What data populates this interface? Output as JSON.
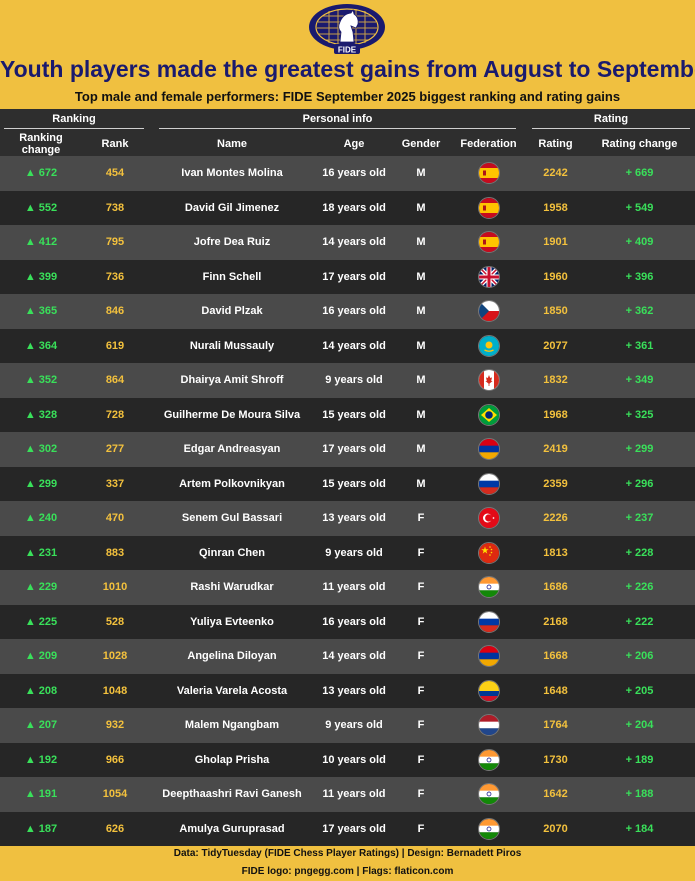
{
  "header": {
    "logo_text": "FIDE",
    "title": "Youth players made the greatest gains from August to September",
    "subtitle": "Top male and female performers: FIDE September 2025 biggest ranking and rating gains"
  },
  "colors": {
    "background": "#f0c040",
    "title": "#1a1a6e",
    "positive": "#39e05a",
    "accent": "#f3c13d",
    "row_light": "#4a4a4a",
    "row_dark": "#262626"
  },
  "chart_data": {
    "type": "table",
    "groups": [
      {
        "label": "Ranking",
        "span": 2
      },
      {
        "label": "Personal info",
        "span": 4
      },
      {
        "label": "Rating",
        "span": 2
      }
    ],
    "columns": [
      "Ranking change",
      "Rank",
      "Name",
      "Age",
      "Gender",
      "Federation",
      "Rating",
      "Rating change"
    ],
    "rows": [
      {
        "ranking_change": "▲ 672",
        "rank": "454",
        "name": "Ivan Montes Molina",
        "age": "16 years old",
        "gender": "M",
        "federation": "spain-flag-icon",
        "rating": "2242",
        "rating_change": "+ 669"
      },
      {
        "ranking_change": "▲ 552",
        "rank": "738",
        "name": "David Gil Jimenez",
        "age": "18 years old",
        "gender": "M",
        "federation": "spain-flag-icon",
        "rating": "1958",
        "rating_change": "+ 549"
      },
      {
        "ranking_change": "▲ 412",
        "rank": "795",
        "name": "Jofre Dea Ruiz",
        "age": "14 years old",
        "gender": "M",
        "federation": "spain-flag-icon",
        "rating": "1901",
        "rating_change": "+ 409"
      },
      {
        "ranking_change": "▲ 399",
        "rank": "736",
        "name": "Finn Schell",
        "age": "17 years old",
        "gender": "M",
        "federation": "uk-flag-icon",
        "rating": "1960",
        "rating_change": "+ 396"
      },
      {
        "ranking_change": "▲ 365",
        "rank": "846",
        "name": "David Plzak",
        "age": "16 years old",
        "gender": "M",
        "federation": "czech-flag-icon",
        "rating": "1850",
        "rating_change": "+ 362"
      },
      {
        "ranking_change": "▲ 364",
        "rank": "619",
        "name": "Nurali Mussauly",
        "age": "14 years old",
        "gender": "M",
        "federation": "kazakhstan-flag-icon",
        "rating": "2077",
        "rating_change": "+ 361"
      },
      {
        "ranking_change": "▲ 352",
        "rank": "864",
        "name": "Dhairya Amit Shroff",
        "age": "9 years old",
        "gender": "M",
        "federation": "canada-flag-icon",
        "rating": "1832",
        "rating_change": "+ 349"
      },
      {
        "ranking_change": "▲ 328",
        "rank": "728",
        "name": "Guilherme De Moura Silva",
        "age": "15 years old",
        "gender": "M",
        "federation": "brazil-flag-icon",
        "rating": "1968",
        "rating_change": "+ 325"
      },
      {
        "ranking_change": "▲ 302",
        "rank": "277",
        "name": "Edgar Andreasyan",
        "age": "17 years old",
        "gender": "M",
        "federation": "armenia-flag-icon",
        "rating": "2419",
        "rating_change": "+ 299"
      },
      {
        "ranking_change": "▲ 299",
        "rank": "337",
        "name": "Artem Polkovnikyan",
        "age": "15 years old",
        "gender": "M",
        "federation": "russia-flag-icon",
        "rating": "2359",
        "rating_change": "+ 296"
      },
      {
        "ranking_change": "▲ 240",
        "rank": "470",
        "name": "Senem Gul Bassari",
        "age": "13 years old",
        "gender": "F",
        "federation": "turkey-flag-icon",
        "rating": "2226",
        "rating_change": "+ 237"
      },
      {
        "ranking_change": "▲ 231",
        "rank": "883",
        "name": "Qinran Chen",
        "age": "9 years old",
        "gender": "F",
        "federation": "china-flag-icon",
        "rating": "1813",
        "rating_change": "+ 228"
      },
      {
        "ranking_change": "▲ 229",
        "rank": "1010",
        "name": "Rashi Warudkar",
        "age": "11 years old",
        "gender": "F",
        "federation": "india-flag-icon",
        "rating": "1686",
        "rating_change": "+ 226"
      },
      {
        "ranking_change": "▲ 225",
        "rank": "528",
        "name": "Yuliya Evteenko",
        "age": "16 years old",
        "gender": "F",
        "federation": "russia-flag-icon",
        "rating": "2168",
        "rating_change": "+ 222"
      },
      {
        "ranking_change": "▲ 209",
        "rank": "1028",
        "name": "Angelina Diloyan",
        "age": "14 years old",
        "gender": "F",
        "federation": "armenia-flag-icon",
        "rating": "1668",
        "rating_change": "+ 206"
      },
      {
        "ranking_change": "▲ 208",
        "rank": "1048",
        "name": "Valeria Varela Acosta",
        "age": "13 years old",
        "gender": "F",
        "federation": "colombia-flag-icon",
        "rating": "1648",
        "rating_change": "+ 205"
      },
      {
        "ranking_change": "▲ 207",
        "rank": "932",
        "name": "Malem Ngangbam",
        "age": "9 years old",
        "gender": "F",
        "federation": "netherlands-flag-icon",
        "rating": "1764",
        "rating_change": "+ 204"
      },
      {
        "ranking_change": "▲ 192",
        "rank": "966",
        "name": "Gholap Prisha",
        "age": "10 years old",
        "gender": "F",
        "federation": "india-flag-icon",
        "rating": "1730",
        "rating_change": "+ 189"
      },
      {
        "ranking_change": "▲ 191",
        "rank": "1054",
        "name": "Deepthaashri Ravi Ganesh",
        "age": "11 years old",
        "gender": "F",
        "federation": "india-flag-icon",
        "rating": "1642",
        "rating_change": "+ 188"
      },
      {
        "ranking_change": "▲ 187",
        "rank": "626",
        "name": "Amulya Guruprasad",
        "age": "17 years old",
        "gender": "F",
        "federation": "india-flag-icon",
        "rating": "2070",
        "rating_change": "+ 184"
      }
    ]
  },
  "footer": {
    "line1": "Data: TidyTuesday (FIDE Chess Player Ratings) | Design: Bernadett Piros",
    "line2": "FIDE logo: pngegg.com | Flags: flaticon.com"
  }
}
